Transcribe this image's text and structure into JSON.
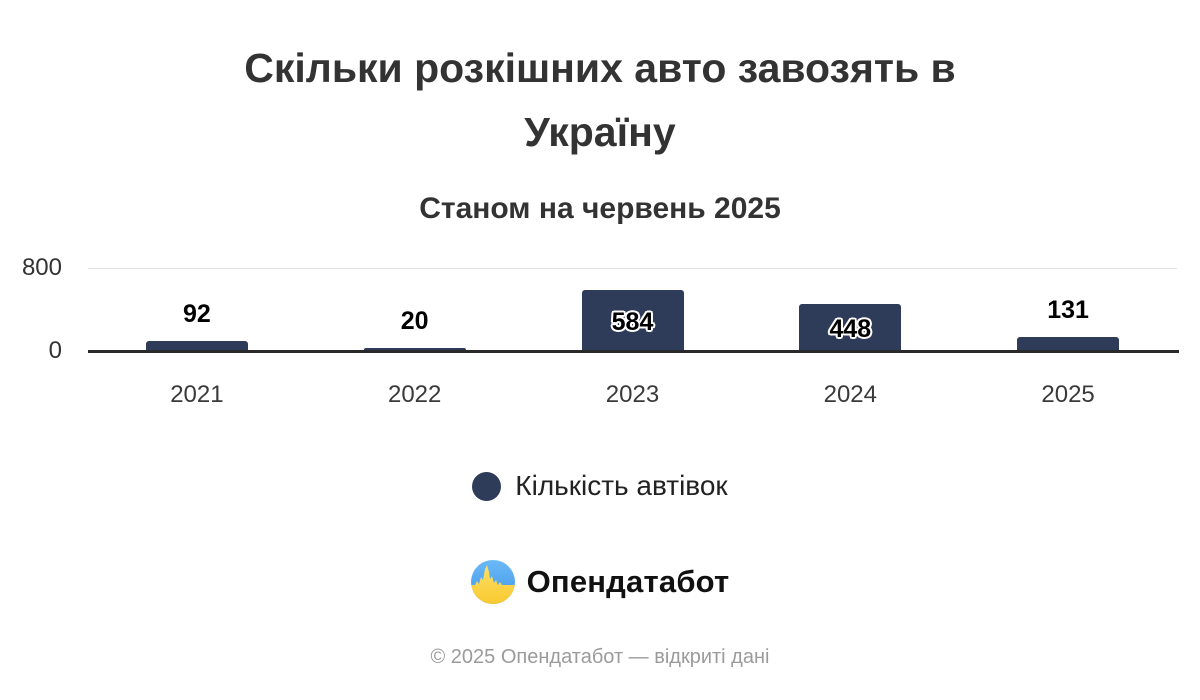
{
  "header": {
    "title": "Скільки розкішних авто завозять в Україну",
    "title_lines": [
      "Скільки розкішних авто завозять в",
      "Україну"
    ],
    "subtitle": "Станом на червень 2025"
  },
  "chart_data": {
    "type": "bar",
    "title": "Скільки розкішних авто завозять в Україну",
    "subtitle": "Станом на червень 2025",
    "categories": [
      "2021",
      "2022",
      "2023",
      "2024",
      "2025"
    ],
    "values": [
      92,
      20,
      584,
      448,
      131
    ],
    "value_label_positions": [
      "outside",
      "outside",
      "inside",
      "inside",
      "outside"
    ],
    "xlabel": "",
    "ylabel": "",
    "ylim": [
      0,
      800
    ],
    "yticks": [
      "800",
      "0"
    ],
    "grid": "single top gridline at 800, dark baseline at 0",
    "bar_color": "#2e3c59",
    "legend_position": "bottom",
    "legend": [
      {
        "label": "Кількість автівок",
        "color": "#2e3c59"
      }
    ]
  },
  "legend": {
    "label": "Кількість автівок"
  },
  "branding": {
    "logo_text": "Опендатабот",
    "logo_icon": "opendatabot-circle-icon"
  },
  "footer": {
    "copyright": "© 2025 Опендатабот — відкриті дані"
  },
  "colors": {
    "bar": "#2e3c59",
    "title_text": "#333333",
    "axis_line": "#2a2a2a",
    "gridline": "#e3e3e3",
    "footer_text": "#9b9b9b",
    "logo_blue_top": "#6cb9f7",
    "logo_blue_bottom": "#3e95e8",
    "logo_yellow_top": "#ffe066",
    "logo_yellow_bottom": "#f8c930"
  }
}
